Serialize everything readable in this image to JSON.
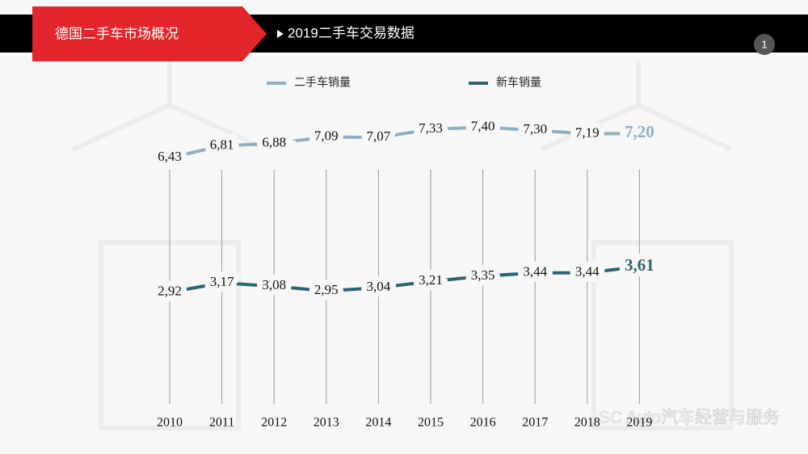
{
  "header": {
    "section": "德国二手车市场概况",
    "title": "2019二手车交易数据",
    "page": "1"
  },
  "watermark": "SC Auto汽车经营与服务",
  "chart_data": {
    "type": "line",
    "categories": [
      "2010",
      "2011",
      "2012",
      "2013",
      "2014",
      "2015",
      "2016",
      "2017",
      "2018",
      "2019"
    ],
    "series": [
      {
        "name": "二手车销量",
        "color": "#8fb0bd",
        "values": [
          6.43,
          6.81,
          6.88,
          7.09,
          7.07,
          7.33,
          7.4,
          7.3,
          7.19,
          7.2
        ],
        "value_labels": [
          "6,43",
          "6,81",
          "6,88",
          "7,09",
          "7,07",
          "7,33",
          "7,40",
          "7,30",
          "7,19",
          "7,20"
        ]
      },
      {
        "name": "新车销量",
        "color": "#2e6470",
        "axis": "y2",
        "values": [
          2.92,
          3.17,
          3.08,
          2.95,
          3.04,
          3.21,
          3.35,
          3.44,
          3.44,
          3.61
        ],
        "value_labels": [
          "2,92",
          "3,17",
          "3,08",
          "2,95",
          "3,04",
          "3,21",
          "3,35",
          "3,44",
          "3,44",
          "3,61"
        ]
      }
    ],
    "ylim": [
      6,
      8
    ],
    "y2lim": [
      2.5,
      4.5
    ]
  }
}
